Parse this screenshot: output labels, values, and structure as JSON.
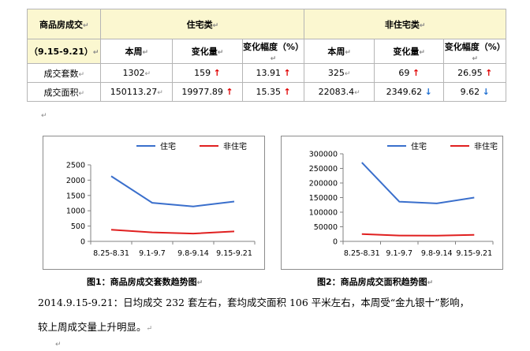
{
  "table": {
    "header_title": "商品房成交",
    "period": "（9.15-9.21）",
    "group_residential": "住宅类",
    "group_nonresidential": "非住宅类",
    "cols": [
      "本周",
      "变化量",
      "变化幅度（%）",
      "本周",
      "变化量",
      "变化幅度（%）"
    ],
    "rows": [
      {
        "label": "成交套数",
        "cells": [
          "1302",
          "159",
          "13.91",
          "325",
          "69",
          "26.95"
        ],
        "trend": [
          "",
          "up",
          "up",
          "",
          "up",
          "up"
        ]
      },
      {
        "label": "成交面积",
        "cells": [
          "150113.27",
          "19977.89",
          "15.35",
          "22083.4",
          "2349.62",
          "9.62"
        ],
        "trend": [
          "",
          "up",
          "up",
          "",
          "down",
          "down"
        ]
      }
    ],
    "mark": "↵"
  },
  "chart_data": [
    {
      "type": "line",
      "categories": [
        "8.25-8.31",
        "9.1-9.7",
        "9.8-9.14",
        "9.15-9.21"
      ],
      "series": [
        {
          "name": "住宅",
          "values": [
            2130,
            1260,
            1143,
            1302
          ],
          "color": "#3a6fcc"
        },
        {
          "name": "非住宅",
          "values": [
            380,
            295,
            256,
            325
          ],
          "color": "#e02020"
        }
      ],
      "ylim": [
        0,
        2500
      ],
      "yticks": [
        0,
        500,
        1000,
        1500,
        2000,
        2500
      ],
      "legend": "top",
      "title": "图1：商品房成交套数趋势图"
    },
    {
      "type": "line",
      "categories": [
        "8.25-8.31",
        "9.1-9.7",
        "9.8-9.14",
        "9.15-9.21"
      ],
      "series": [
        {
          "name": "住宅",
          "values": [
            270000,
            136000,
            130135,
            150113
          ],
          "color": "#3a6fcc"
        },
        {
          "name": "非住宅",
          "values": [
            25000,
            20000,
            19734,
            22083
          ],
          "color": "#e02020"
        }
      ],
      "ylim": [
        0,
        300000
      ],
      "yticks": [
        0,
        50000,
        100000,
        150000,
        200000,
        250000,
        300000
      ],
      "legend": "top",
      "title": "图2：商品房成交面积趋势图"
    }
  ],
  "paragraph": {
    "line1": "2014.9.15-9.21：日均成交 232 套左右，套均成交面积 106 平米左右，本周受“金九银十”影响，",
    "line2": "较上周成交量上升明显。"
  }
}
